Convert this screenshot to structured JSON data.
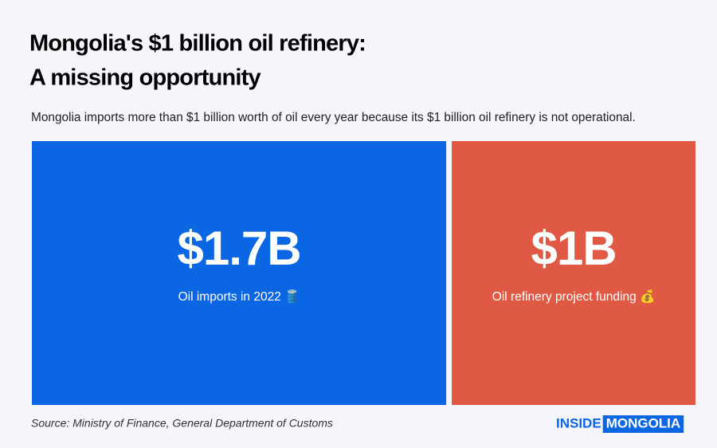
{
  "chart_data": {
    "type": "proportional-blocks",
    "title": [
      "Mongolia's $1 billion oil refinery:",
      "A missing opportunity"
    ],
    "subtitle": "Mongolia imports more than $1 billion worth of oil every year because its $1 billion oil refinery is not operational.",
    "categories": [
      "Oil imports in 2022 🛢️",
      "Oil refinery project funding 💰"
    ],
    "values": [
      1.7,
      1
    ],
    "value_labels": [
      "$1.7B",
      "$1B"
    ],
    "colors": [
      "#0b66e4",
      "#e05944"
    ]
  },
  "source": "Source: Ministry of Finance, General Department of Customs",
  "logo": [
    "INSIDE",
    "MONGOLIA"
  ]
}
